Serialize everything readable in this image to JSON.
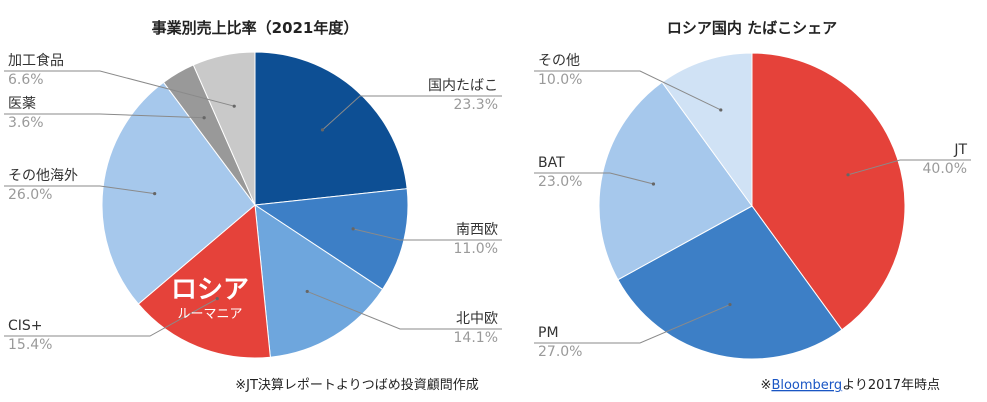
{
  "chart_data": [
    {
      "type": "pie",
      "title": "事業別売上比率（2021年度）",
      "slices": [
        {
          "label": "国内たばこ",
          "value": 23.3,
          "pct": "23.3%",
          "color": "#0d4f94"
        },
        {
          "label": "南西欧",
          "value": 11.0,
          "pct": "11.0%",
          "color": "#3d7fc6"
        },
        {
          "label": "北中欧",
          "value": 14.1,
          "pct": "14.1%",
          "color": "#6ea6dd"
        },
        {
          "label": "CIS+",
          "value": 15.4,
          "pct": "15.4%",
          "color": "#e5423a"
        },
        {
          "label": "その他海外",
          "value": 26.0,
          "pct": "26.0%",
          "color": "#a6c8ec"
        },
        {
          "label": "医薬",
          "value": 3.6,
          "pct": "3.6%",
          "color": "#999999"
        },
        {
          "label": "加工食品",
          "value": 6.6,
          "pct": "6.6%",
          "color": "#c9c9c9"
        }
      ],
      "highlight": {
        "main": "ロシア",
        "sub": "ルーマニア"
      },
      "source_note": "※JT決算レポートよりつばめ投資顧問作成"
    },
    {
      "type": "pie",
      "title": "ロシア国内 たばこシェア",
      "slices": [
        {
          "label": "JT",
          "value": 40.0,
          "pct": "40.0%",
          "color": "#e5423a"
        },
        {
          "label": "PM",
          "value": 27.0,
          "pct": "27.0%",
          "color": "#3d7fc6"
        },
        {
          "label": "BAT",
          "value": 23.0,
          "pct": "23.0%",
          "color": "#a6c8ec"
        },
        {
          "label": "その他",
          "value": 10.0,
          "pct": "10.0%",
          "color": "#d0e2f5"
        }
      ],
      "source_note": {
        "prefix": "※",
        "link": "Bloomberg",
        "suffix": "より2017年時点"
      }
    }
  ]
}
